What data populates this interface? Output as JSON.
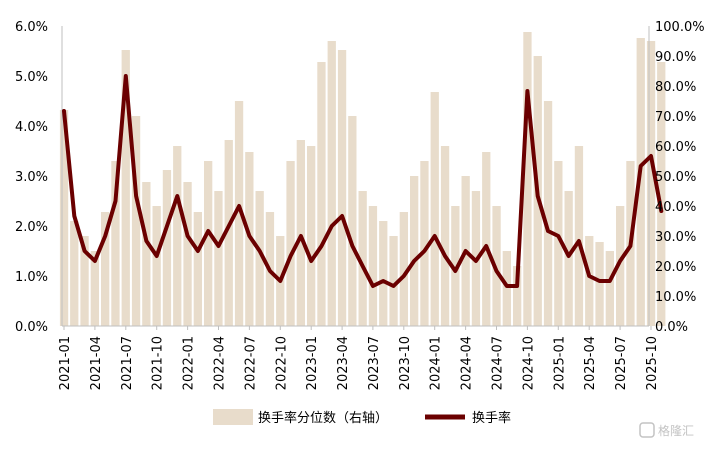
{
  "chart_data": {
    "type": "bar+line",
    "title": "",
    "x_ticks": [
      "2021-01",
      "2021-04",
      "2021-07",
      "2021-10",
      "2022-01",
      "2022-04",
      "2022-07",
      "2022-10",
      "2023-01",
      "2023-04",
      "2023-07",
      "2023-10",
      "2024-01",
      "2024-04",
      "2024-07",
      "2024-10",
      "2025-01",
      "2025-04",
      "2025-07",
      "2025-10"
    ],
    "y_left": {
      "ticks": [
        "0.0%",
        "1.0%",
        "2.0%",
        "3.0%",
        "4.0%",
        "5.0%",
        "6.0%"
      ],
      "range": [
        0,
        6
      ]
    },
    "y_right": {
      "ticks": [
        "0.0%",
        "10.0%",
        "20.0%",
        "30.0%",
        "40.0%",
        "50.0%",
        "60.0%",
        "70.0%",
        "80.0%",
        "90.0%",
        "100.0%"
      ],
      "range": [
        0,
        100
      ]
    },
    "legend_position": "bottom",
    "series": [
      {
        "name": "换手率分位数（右轴）",
        "kind": "bar",
        "axis": "right",
        "color": "#e8dccb",
        "x": [
          "2021-01",
          "2021-02",
          "2021-03",
          "2021-04",
          "2021-05",
          "2021-06",
          "2021-07",
          "2021-08",
          "2021-09",
          "2021-10",
          "2021-11",
          "2021-12",
          "2022-01",
          "2022-02",
          "2022-03",
          "2022-04",
          "2022-05",
          "2022-06",
          "2022-07",
          "2022-08",
          "2022-09",
          "2022-10",
          "2022-11",
          "2022-12",
          "2023-01",
          "2023-02",
          "2023-03",
          "2023-04",
          "2023-05",
          "2023-06",
          "2023-07",
          "2023-08",
          "2023-09",
          "2023-10",
          "2023-11",
          "2023-12",
          "2024-01",
          "2024-02",
          "2024-03",
          "2024-04",
          "2024-05",
          "2024-06",
          "2024-07",
          "2024-08",
          "2024-09",
          "2024-10",
          "2024-11",
          "2024-12",
          "2025-01",
          "2025-02",
          "2025-03",
          "2025-04",
          "2025-05",
          "2025-06",
          "2025-07",
          "2025-08",
          "2025-09",
          "2025-10",
          "2025-11"
        ],
        "values": [
          72,
          35,
          30,
          25,
          38,
          55,
          92,
          70,
          48,
          40,
          52,
          60,
          48,
          38,
          55,
          45,
          62,
          75,
          58,
          45,
          38,
          30,
          55,
          62,
          60,
          88,
          95,
          92,
          70,
          45,
          40,
          35,
          30,
          38,
          50,
          55,
          78,
          60,
          40,
          50,
          45,
          58,
          40,
          25,
          20,
          98,
          90,
          75,
          55,
          45,
          60,
          30,
          28,
          25,
          40,
          55,
          96,
          95,
          88
        ]
      },
      {
        "name": "换手率",
        "kind": "line",
        "axis": "left",
        "color": "#6b0000",
        "x": [
          "2021-01",
          "2021-02",
          "2021-03",
          "2021-04",
          "2021-05",
          "2021-06",
          "2021-07",
          "2021-08",
          "2021-09",
          "2021-10",
          "2021-11",
          "2021-12",
          "2022-01",
          "2022-02",
          "2022-03",
          "2022-04",
          "2022-05",
          "2022-06",
          "2022-07",
          "2022-08",
          "2022-09",
          "2022-10",
          "2022-11",
          "2022-12",
          "2023-01",
          "2023-02",
          "2023-03",
          "2023-04",
          "2023-05",
          "2023-06",
          "2023-07",
          "2023-08",
          "2023-09",
          "2023-10",
          "2023-11",
          "2023-12",
          "2024-01",
          "2024-02",
          "2024-03",
          "2024-04",
          "2024-05",
          "2024-06",
          "2024-07",
          "2024-08",
          "2024-09",
          "2024-10",
          "2024-11",
          "2024-12",
          "2025-01",
          "2025-02",
          "2025-03",
          "2025-04",
          "2025-05",
          "2025-06",
          "2025-07",
          "2025-08",
          "2025-09",
          "2025-10",
          "2025-11"
        ],
        "values": [
          4.3,
          2.2,
          1.5,
          1.3,
          1.8,
          2.5,
          5.0,
          2.6,
          1.7,
          1.4,
          2.0,
          2.6,
          1.8,
          1.5,
          1.9,
          1.6,
          2.0,
          2.4,
          1.8,
          1.5,
          1.1,
          0.9,
          1.4,
          1.8,
          1.3,
          1.6,
          2.0,
          2.2,
          1.6,
          1.2,
          0.8,
          0.9,
          0.8,
          1.0,
          1.3,
          1.5,
          1.8,
          1.4,
          1.1,
          1.5,
          1.3,
          1.6,
          1.1,
          0.8,
          0.8,
          4.7,
          2.6,
          1.9,
          1.8,
          1.4,
          1.7,
          1.0,
          0.9,
          0.9,
          1.3,
          1.6,
          3.2,
          3.4,
          2.3
        ]
      }
    ]
  },
  "watermark": "格隆汇"
}
